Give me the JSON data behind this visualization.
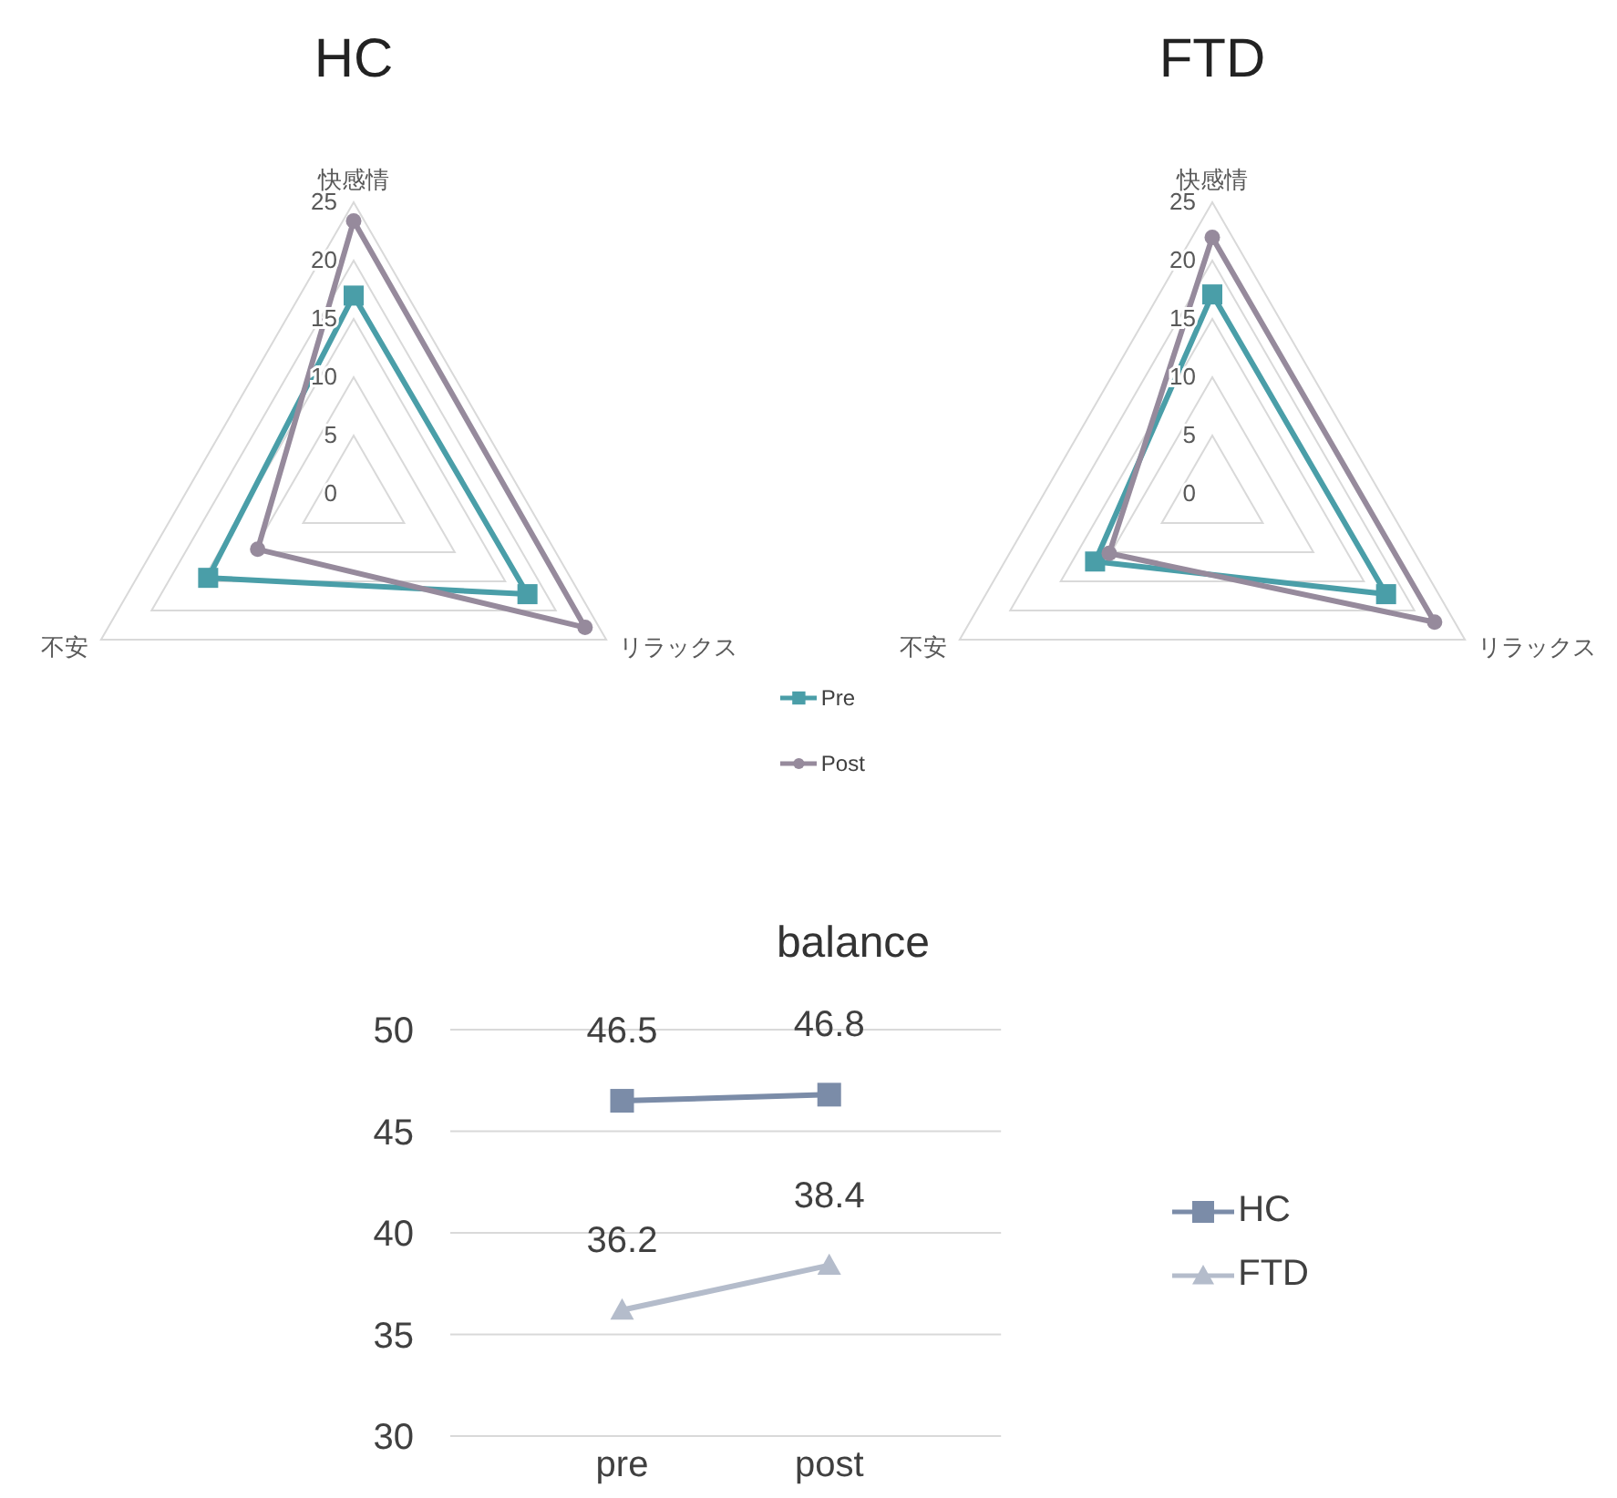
{
  "chart_data": [
    {
      "type": "radar",
      "title": "HC",
      "categories": [
        "快感情",
        "リラックス",
        "不安"
      ],
      "ylim": [
        0,
        25
      ],
      "yticks": [
        0,
        5,
        10,
        15,
        20,
        25
      ],
      "legend": "bottom right",
      "series": [
        {
          "name": "Pre",
          "color": "#4a9ea8",
          "marker": "square",
          "values": [
            17,
            17.2,
            14.4
          ]
        },
        {
          "name": "Post",
          "color": "#968a9c",
          "marker": "circle",
          "values": [
            23.4,
            22.9,
            9.5
          ]
        }
      ]
    },
    {
      "type": "radar",
      "title": "FTD",
      "categories": [
        "快感情",
        "リラックス",
        "不安"
      ],
      "ylim": [
        0,
        25
      ],
      "yticks": [
        0,
        5,
        10,
        15,
        20,
        25
      ],
      "series": [
        {
          "color": "#4a9ea8",
          "marker": "square",
          "values": [
            17.1,
            17.2,
            11.6
          ]
        },
        {
          "color": "#968a9c",
          "marker": "circle",
          "values": [
            22,
            22,
            10.2
          ]
        }
      ]
    },
    {
      "type": "line",
      "title": "balance",
      "categories": [
        "pre",
        "post"
      ],
      "ylim": [
        30,
        50
      ],
      "yticks": [
        30,
        35,
        40,
        45,
        50
      ],
      "grid": "y",
      "legend": "right",
      "data_labels": true,
      "series": [
        {
          "name": "HC",
          "color": "#7b8ca8",
          "marker": "square",
          "values": [
            46.5,
            46.8
          ]
        },
        {
          "name": "FTD",
          "color": "#b4bccb",
          "marker": "triangle",
          "values": [
            36.2,
            38.4
          ]
        }
      ]
    }
  ]
}
